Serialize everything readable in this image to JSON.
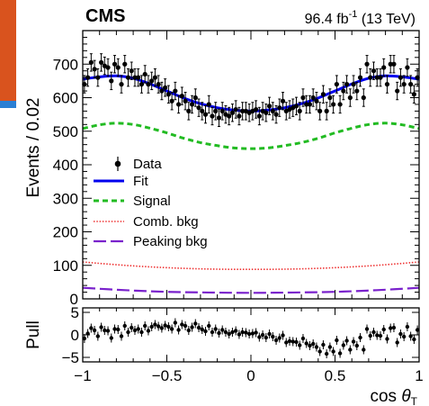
{
  "header": {
    "experiment": "CMS",
    "lumi_prefix": "96.4 fb",
    "lumi_exp": "-1",
    "lumi_suffix": " (13 TeV)"
  },
  "colors": {
    "fit": "#0000ee",
    "signal": "#22bb22",
    "comb_bkg": "#ee3333",
    "peaking_bkg": "#7a22cc",
    "data": "#000000",
    "corner_badge_top": "#d9531e",
    "corner_badge_bottom": "#2a7fd4"
  },
  "chart_data": [
    {
      "type": "scatter",
      "panel": "main",
      "ylabel": "Events / 0.02",
      "xlim": [
        -1,
        1
      ],
      "ylim": [
        0,
        800
      ],
      "x_ticks": [
        "−1",
        "−0.5",
        "0",
        "0.5",
        "1"
      ],
      "y_ticks": [
        "0",
        "100",
        "200",
        "300",
        "400",
        "500",
        "600",
        "700"
      ],
      "legend": {
        "placement": "center-left",
        "entries": [
          "Data",
          "Fit",
          "Signal",
          "Comb. bkg",
          "Peaking bkg"
        ]
      },
      "series": [
        {
          "name": "Data",
          "style": "points with error bars",
          "x": [
            -0.99,
            -0.97,
            -0.95,
            -0.93,
            -0.91,
            -0.89,
            -0.87,
            -0.85,
            -0.83,
            -0.81,
            -0.79,
            -0.77,
            -0.75,
            -0.73,
            -0.71,
            -0.69,
            -0.67,
            -0.65,
            -0.63,
            -0.61,
            -0.59,
            -0.57,
            -0.55,
            -0.53,
            -0.51,
            -0.49,
            -0.47,
            -0.45,
            -0.43,
            -0.41,
            -0.39,
            -0.37,
            -0.35,
            -0.33,
            -0.31,
            -0.29,
            -0.27,
            -0.25,
            -0.23,
            -0.21,
            -0.19,
            -0.17,
            -0.15,
            -0.13,
            -0.11,
            -0.09,
            -0.07,
            -0.05,
            -0.03,
            -0.01,
            0.01,
            0.03,
            0.05,
            0.07,
            0.09,
            0.11,
            0.13,
            0.15,
            0.17,
            0.19,
            0.21,
            0.23,
            0.25,
            0.27,
            0.29,
            0.31,
            0.33,
            0.35,
            0.37,
            0.39,
            0.41,
            0.43,
            0.45,
            0.47,
            0.49,
            0.51,
            0.53,
            0.55,
            0.57,
            0.59,
            0.61,
            0.63,
            0.65,
            0.67,
            0.69,
            0.71,
            0.73,
            0.75,
            0.77,
            0.79,
            0.81,
            0.83,
            0.85,
            0.87,
            0.89,
            0.91,
            0.93,
            0.95,
            0.97,
            0.99
          ],
          "y": [
            640,
            660,
            705,
            685,
            660,
            705,
            695,
            690,
            650,
            700,
            690,
            640,
            700,
            660,
            680,
            660,
            660,
            640,
            670,
            640,
            650,
            660,
            640,
            620,
            630,
            610,
            590,
            620,
            580,
            605,
            590,
            560,
            580,
            600,
            570,
            560,
            550,
            580,
            545,
            560,
            540,
            560,
            550,
            545,
            555,
            565,
            545,
            560,
            560,
            555,
            560,
            565,
            545,
            560,
            555,
            575,
            560,
            550,
            570,
            590,
            560,
            565,
            570,
            575,
            560,
            600,
            580,
            580,
            600,
            590,
            560,
            610,
            560,
            600,
            580,
            640,
            580,
            620,
            640,
            600,
            640,
            620,
            660,
            600,
            700,
            660,
            680,
            660,
            660,
            690,
            640,
            700,
            700,
            620,
            660,
            640,
            690,
            640,
            610,
            660
          ],
          "error": 26
        },
        {
          "name": "Fit",
          "style": "solid",
          "x": [
            -1.0,
            -0.9,
            -0.8,
            -0.7,
            -0.6,
            -0.5,
            -0.4,
            -0.3,
            -0.2,
            -0.1,
            0.0,
            0.1,
            0.2,
            0.3,
            0.4,
            0.5,
            0.6,
            0.7,
            0.8,
            0.9,
            1.0
          ],
          "y": [
            655,
            662,
            665,
            658,
            641,
            620,
            599,
            582,
            570,
            563,
            560,
            563,
            570,
            582,
            599,
            620,
            641,
            658,
            665,
            662,
            655
          ]
        },
        {
          "name": "Signal",
          "style": "dashed",
          "x": [
            -1.0,
            -0.9,
            -0.8,
            -0.7,
            -0.6,
            -0.5,
            -0.4,
            -0.3,
            -0.2,
            -0.1,
            0.0,
            0.1,
            0.2,
            0.3,
            0.4,
            0.5,
            0.6,
            0.7,
            0.8,
            0.9,
            1.0
          ],
          "y": [
            508,
            519,
            524,
            520,
            509,
            495,
            479,
            466,
            457,
            450,
            448,
            450,
            457,
            466,
            479,
            495,
            509,
            520,
            524,
            519,
            508
          ]
        },
        {
          "name": "Comb. bkg",
          "style": "dotted",
          "x": [
            -1.0,
            -0.75,
            -0.5,
            -0.25,
            0.0,
            0.25,
            0.5,
            0.75,
            1.0
          ],
          "y": [
            110,
            100,
            93,
            89,
            88,
            89,
            93,
            100,
            110
          ]
        },
        {
          "name": "Peaking bkg",
          "style": "long-dashed",
          "x": [
            -1.0,
            -0.75,
            -0.5,
            -0.25,
            0.0,
            0.25,
            0.5,
            0.75,
            1.0
          ],
          "y": [
            33,
            26,
            21,
            19,
            18,
            19,
            21,
            26,
            33
          ]
        }
      ]
    },
    {
      "type": "scatter",
      "panel": "pull",
      "ylabel": "Pull",
      "xlabel_prefix": "cos ",
      "xlabel_symbol": "θ",
      "xlabel_sub": "T",
      "xlim": [
        -1,
        1
      ],
      "ylim": [
        -6,
        6
      ],
      "x_ticks": [
        "−1",
        "−0.5",
        "0",
        "0.5",
        "1"
      ],
      "y_ticks": [
        "5",
        "0",
        "−5"
      ],
      "series": [
        {
          "name": "Pull",
          "x": [
            -0.99,
            -0.97,
            -0.95,
            -0.93,
            -0.91,
            -0.89,
            -0.87,
            -0.85,
            -0.83,
            -0.81,
            -0.79,
            -0.77,
            -0.75,
            -0.73,
            -0.71,
            -0.69,
            -0.67,
            -0.65,
            -0.63,
            -0.61,
            -0.59,
            -0.57,
            -0.55,
            -0.53,
            -0.51,
            -0.49,
            -0.47,
            -0.45,
            -0.43,
            -0.41,
            -0.39,
            -0.37,
            -0.35,
            -0.33,
            -0.31,
            -0.29,
            -0.27,
            -0.25,
            -0.23,
            -0.21,
            -0.19,
            -0.17,
            -0.15,
            -0.13,
            -0.11,
            -0.09,
            -0.07,
            -0.05,
            -0.03,
            -0.01,
            0.01,
            0.03,
            0.05,
            0.07,
            0.09,
            0.11,
            0.13,
            0.15,
            0.17,
            0.19,
            0.21,
            0.23,
            0.25,
            0.27,
            0.29,
            0.31,
            0.33,
            0.35,
            0.37,
            0.39,
            0.41,
            0.43,
            0.45,
            0.47,
            0.49,
            0.51,
            0.53,
            0.55,
            0.57,
            0.59,
            0.61,
            0.63,
            0.65,
            0.67,
            0.69,
            0.71,
            0.73,
            0.75,
            0.77,
            0.79,
            0.81,
            0.83,
            0.85,
            0.87,
            0.89,
            0.91,
            0.93,
            0.95,
            0.97,
            0.99
          ],
          "y": [
            -0.8,
            0.3,
            1.5,
            1.0,
            -0.3,
            1.7,
            1.0,
            0.9,
            -0.7,
            1.3,
            1.2,
            -0.3,
            2.0,
            0.6,
            1.6,
            1.0,
            1.3,
            0.6,
            2.0,
            0.9,
            1.8,
            2.3,
            1.9,
            1.5,
            2.1,
            1.8,
            1.3,
            2.7,
            1.1,
            2.3,
            2.0,
            1.0,
            1.7,
            2.5,
            1.6,
            1.2,
            0.8,
            2.0,
            0.6,
            1.3,
            0.4,
            1.1,
            0.6,
            0.2,
            0.6,
            0.9,
            0.1,
            0.6,
            0.5,
            0.2,
            0.3,
            0.5,
            -0.5,
            0.0,
            -0.6,
            0.2,
            -0.4,
            -1.2,
            -0.7,
            -0.1,
            -1.7,
            -1.4,
            -1.5,
            -1.6,
            -2.3,
            -0.8,
            -1.9,
            -2.4,
            -2.0,
            -2.7,
            -3.7,
            -2.2,
            -4.2,
            -2.7,
            -3.7,
            -1.2,
            -4.1,
            -2.3,
            -1.3,
            -3.3,
            -1.5,
            -2.4,
            -0.6,
            -3.3,
            1.3,
            -0.2,
            0.6,
            -0.1,
            -0.2,
            1.2,
            -0.9,
            1.5,
            1.6,
            -1.7,
            0.2,
            -0.4,
            1.8,
            -0.3,
            -1.0,
            1.1
          ],
          "error": 1
        }
      ]
    }
  ]
}
